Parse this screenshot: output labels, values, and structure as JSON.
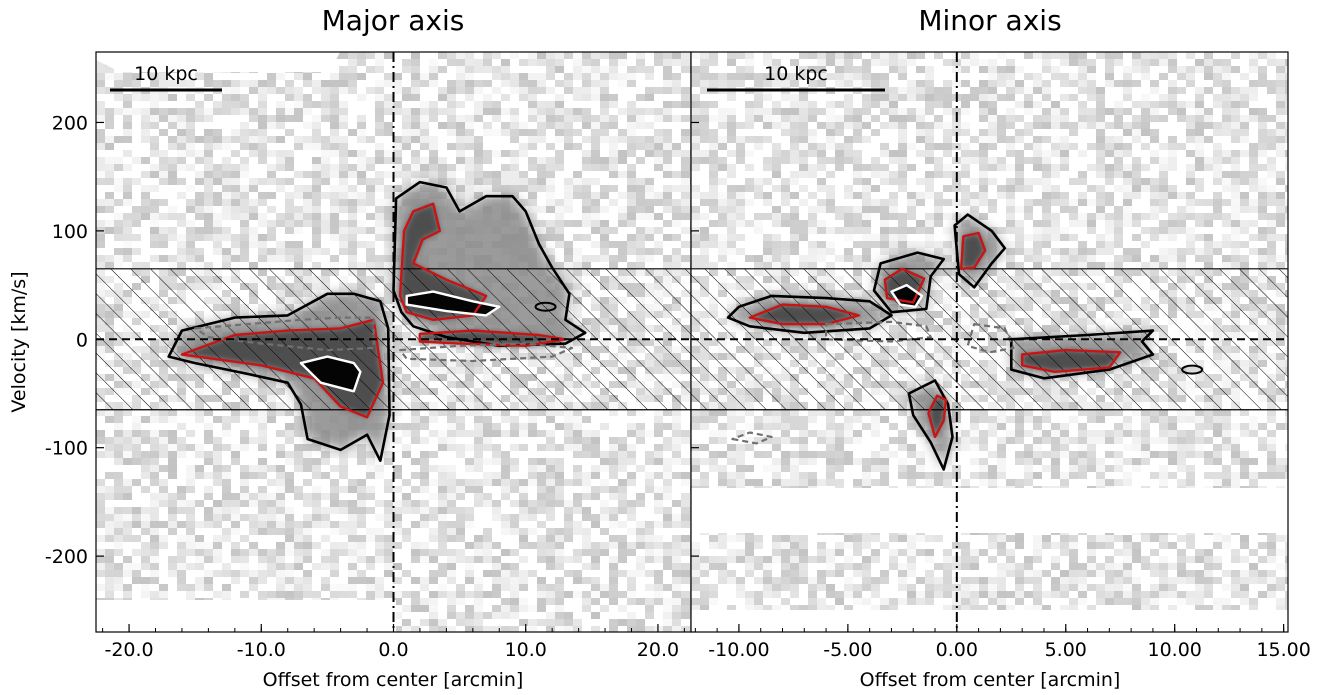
{
  "chart_data": [
    {
      "type": "heatmap",
      "title": "Major axis",
      "xlabel": "Offset from center [arcmin]",
      "ylabel": "Velocity [km/s]",
      "xlim": [
        -22.5,
        22.5
      ],
      "ylim": [
        -270,
        265
      ],
      "xticks": [
        -20,
        -10,
        0,
        10,
        20
      ],
      "xtick_labels": [
        "-20.0",
        "-10.0",
        "0.0",
        "10.0",
        "20.0"
      ],
      "yticks": [
        -200,
        -100,
        0,
        100,
        200
      ],
      "ytick_labels": [
        "-200",
        "-100",
        "0",
        "100",
        "200"
      ],
      "scale_bar": {
        "label": "10 kpc"
      },
      "excluded_velocity_band": [
        -65,
        65
      ],
      "reference_lines": {
        "vertical_x": 0,
        "horizontal_y": 0
      },
      "contour_colors": [
        "#000000",
        "#c81414",
        "#ffffff",
        "#707070"
      ],
      "contours": {
        "black": [
          [
            [
              0,
              45
            ],
            [
              0.2,
              130
            ],
            [
              2,
              145
            ],
            [
              4,
              140
            ],
            [
              5,
              118
            ],
            [
              7,
              132
            ],
            [
              9,
              132
            ],
            [
              10,
              118
            ],
            [
              11,
              88
            ],
            [
              12,
              66
            ],
            [
              13.3,
              42
            ],
            [
              13,
              18
            ],
            [
              14.5,
              6
            ],
            [
              13,
              -4
            ],
            [
              8,
              -6
            ],
            [
              4,
              2
            ],
            [
              1.5,
              12
            ],
            [
              0.6,
              25
            ]
          ],
          [
            [
              -1,
              35
            ],
            [
              -3,
              42
            ],
            [
              -5,
              42
            ],
            [
              -8,
              22
            ],
            [
              -12,
              20
            ],
            [
              -16,
              8
            ],
            [
              -17,
              -16
            ],
            [
              -15,
              -22
            ],
            [
              -11,
              -32
            ],
            [
              -8,
              -40
            ],
            [
              -7,
              -60
            ],
            [
              -6.5,
              -92
            ],
            [
              -4,
              -102
            ],
            [
              -2,
              -88
            ],
            [
              -1,
              -112
            ],
            [
              -0.3,
              -70
            ],
            [
              -0.4,
              10
            ]
          ]
        ],
        "red": [
          [
            [
              0.5,
              40
            ],
            [
              0.8,
              100
            ],
            [
              1.5,
              118
            ],
            [
              3,
              125
            ],
            [
              3.5,
              100
            ],
            [
              2.2,
              92
            ],
            [
              1.5,
              70
            ],
            [
              4,
              55
            ],
            [
              7,
              40
            ],
            [
              6,
              22
            ],
            [
              3,
              18
            ],
            [
              1,
              25
            ]
          ],
          [
            [
              -1.5,
              18
            ],
            [
              -4,
              10
            ],
            [
              -8,
              8
            ],
            [
              -12,
              4
            ],
            [
              -16,
              -14
            ],
            [
              -10,
              -24
            ],
            [
              -6,
              -36
            ],
            [
              -4,
              -62
            ],
            [
              -2,
              -72
            ],
            [
              -0.8,
              -40
            ]
          ],
          [
            [
              2,
              5
            ],
            [
              6,
              8
            ],
            [
              11,
              4
            ],
            [
              13,
              0
            ],
            [
              10,
              -6
            ],
            [
              5,
              -4
            ],
            [
              2,
              -2
            ]
          ]
        ],
        "white": [
          [
            [
              1,
              40
            ],
            [
              3,
              44
            ],
            [
              6,
              35
            ],
            [
              8,
              30
            ],
            [
              7,
              22
            ],
            [
              4,
              26
            ],
            [
              1,
              32
            ]
          ],
          [
            [
              -2.5,
              -30
            ],
            [
              -3,
              -22
            ],
            [
              -5,
              -16
            ],
            [
              -7,
              -22
            ],
            [
              -5.5,
              -40
            ],
            [
              -3,
              -48
            ]
          ]
        ],
        "dashed_gray": [
          [
            [
              -15,
              10
            ],
            [
              -11,
              14
            ],
            [
              -7,
              18
            ],
            [
              -4,
              20
            ],
            [
              -1.5,
              20
            ],
            [
              -1.5,
              -8
            ],
            [
              -5,
              -10
            ],
            [
              -10,
              -4
            ],
            [
              -14,
              2
            ]
          ],
          [
            [
              0.5,
              -10
            ],
            [
              5,
              -6
            ],
            [
              10,
              -4
            ],
            [
              13.5,
              -8
            ],
            [
              12,
              -16
            ],
            [
              6,
              -20
            ],
            [
              1,
              -18
            ]
          ]
        ]
      },
      "blobs": [
        {
          "x": 11.5,
          "y": 30,
          "r": 2.5
        }
      ]
    },
    {
      "type": "heatmap",
      "title": "Minor axis",
      "xlabel": "Offset from center [arcmin]",
      "ylabel": "",
      "xlim": [
        -12.2,
        15.2
      ],
      "ylim": [
        -270,
        265
      ],
      "xticks": [
        -10,
        -5,
        0,
        5,
        10,
        15
      ],
      "xtick_labels": [
        "-10.00",
        "-5.00",
        "0.00",
        "5.00",
        "10.00",
        "15.00"
      ],
      "yticks": [
        -200,
        -100,
        0,
        100,
        200
      ],
      "scale_bar": {
        "label": "10 kpc"
      },
      "excluded_velocity_band": [
        -65,
        65
      ],
      "reference_lines": {
        "vertical_x": 0,
        "horizontal_y": 0
      },
      "contours": {
        "black": [
          [
            [
              -1.2,
              58
            ],
            [
              -0.6,
              74
            ],
            [
              -1.8,
              80
            ],
            [
              -3.5,
              70
            ],
            [
              -3.8,
              45
            ],
            [
              -3,
              25
            ],
            [
              -1.4,
              28
            ]
          ],
          [
            [
              0.1,
              60
            ],
            [
              -0.1,
              105
            ],
            [
              0.5,
              115
            ],
            [
              1.6,
              100
            ],
            [
              2.2,
              84
            ],
            [
              1.6,
              70
            ],
            [
              0.8,
              48
            ]
          ],
          [
            [
              -10,
              30
            ],
            [
              -8.5,
              40
            ],
            [
              -6,
              38
            ],
            [
              -4,
              35
            ],
            [
              -3,
              22
            ],
            [
              -4,
              10
            ],
            [
              -7,
              6
            ],
            [
              -9.5,
              12
            ],
            [
              -10.5,
              20
            ]
          ],
          [
            [
              2.5,
              0
            ],
            [
              6,
              4
            ],
            [
              9,
              8
            ],
            [
              8.5,
              -2
            ],
            [
              9,
              -14
            ],
            [
              7,
              -28
            ],
            [
              4,
              -36
            ],
            [
              2.5,
              -28
            ]
          ],
          [
            [
              -1,
              -38
            ],
            [
              -2.2,
              -50
            ],
            [
              -2,
              -70
            ],
            [
              -1.2,
              -95
            ],
            [
              -0.6,
              -120
            ],
            [
              -0.2,
              -90
            ],
            [
              -0.4,
              -60
            ]
          ]
        ],
        "red": [
          [
            [
              -1.5,
              56
            ],
            [
              -2.5,
              65
            ],
            [
              -3.3,
              55
            ],
            [
              -3.2,
              38
            ],
            [
              -2,
              34
            ]
          ],
          [
            [
              0.2,
              65
            ],
            [
              0.3,
              95
            ],
            [
              1,
              98
            ],
            [
              1.3,
              82
            ],
            [
              0.8,
              66
            ]
          ],
          [
            [
              -9.5,
              20
            ],
            [
              -8,
              32
            ],
            [
              -6,
              30
            ],
            [
              -4.5,
              22
            ],
            [
              -6,
              14
            ],
            [
              -8,
              14
            ]
          ],
          [
            [
              3,
              -14
            ],
            [
              5,
              -10
            ],
            [
              7.5,
              -12
            ],
            [
              7,
              -26
            ],
            [
              4.5,
              -30
            ],
            [
              3,
              -24
            ]
          ],
          [
            [
              -0.9,
              -52
            ],
            [
              -1.3,
              -68
            ],
            [
              -1,
              -90
            ],
            [
              -0.6,
              -75
            ],
            [
              -0.5,
              -56
            ]
          ]
        ],
        "white": [
          [
            [
              -1.6,
              40
            ],
            [
              -2.3,
              50
            ],
            [
              -3,
              44
            ],
            [
              -2.6,
              32
            ],
            [
              -1.9,
              30
            ]
          ]
        ],
        "dashed_gray": [
          [
            [
              -6,
              14
            ],
            [
              -3,
              16
            ],
            [
              -1.4,
              12
            ],
            [
              -1.2,
              2
            ],
            [
              -3,
              -2
            ],
            [
              -6,
              0
            ]
          ],
          [
            [
              0.8,
              14
            ],
            [
              2.2,
              10
            ],
            [
              2.6,
              -8
            ],
            [
              1.5,
              -12
            ],
            [
              0.5,
              -6
            ]
          ],
          [
            [
              -10.3,
              -92
            ],
            [
              -9.2,
              -96
            ],
            [
              -8.5,
              -90
            ],
            [
              -9.5,
              -86
            ]
          ]
        ]
      },
      "blobs": [
        {
          "x": 10.8,
          "y": -28,
          "r": 3
        }
      ]
    }
  ]
}
